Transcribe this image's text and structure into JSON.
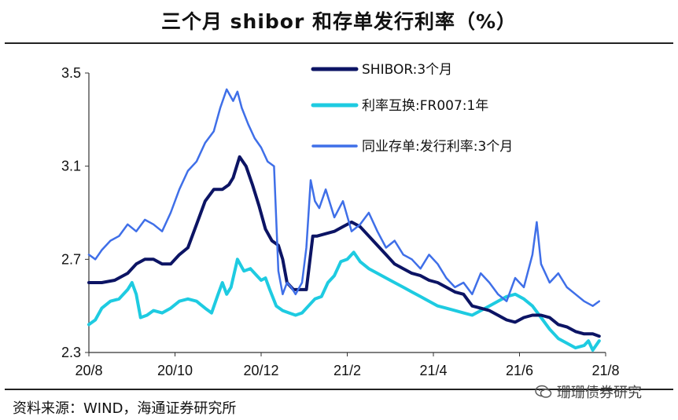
{
  "title": "三个月 shibor 和存单发行利率（%）",
  "source": "资料来源：WIND，海通证券研究所",
  "watermark": "珊珊债券研究",
  "chart_data": {
    "type": "line",
    "title": "三个月 shibor 和存单发行利率（%）",
    "xlabel": "",
    "ylabel": "",
    "ylim": [
      2.3,
      3.5
    ],
    "yticks": [
      "3.5",
      "3.1",
      "2.7",
      "2.3"
    ],
    "ytick_values": [
      3.5,
      3.1,
      2.7,
      2.3
    ],
    "xticks": [
      "20/8",
      "20/10",
      "20/12",
      "21/2",
      "21/4",
      "21/6",
      "21/8"
    ],
    "xtick_values": [
      0,
      2,
      4,
      6,
      8,
      10,
      12
    ],
    "x_range": [
      0,
      12
    ],
    "legend_position": "top-right",
    "series": [
      {
        "name": "SHIBOR:3个月",
        "color": "#0c1464",
        "width": 4,
        "x": [
          0,
          0.3,
          0.6,
          0.9,
          1.1,
          1.3,
          1.5,
          1.7,
          1.9,
          2.1,
          2.3,
          2.5,
          2.7,
          2.9,
          3.1,
          3.25,
          3.35,
          3.5,
          3.65,
          3.8,
          3.95,
          4.1,
          4.25,
          4.4,
          4.5,
          4.6,
          4.75,
          4.9,
          5.05,
          5.2,
          5.3,
          5.5,
          5.7,
          5.9,
          6.1,
          6.3,
          6.5,
          6.7,
          6.9,
          7.1,
          7.3,
          7.5,
          7.7,
          7.9,
          8.1,
          8.3,
          8.5,
          8.7,
          8.9,
          9.1,
          9.3,
          9.5,
          9.7,
          9.9,
          10.1,
          10.3,
          10.5,
          10.7,
          10.9,
          11.1,
          11.3,
          11.5,
          11.7,
          11.85
        ],
        "values": [
          2.6,
          2.6,
          2.61,
          2.64,
          2.68,
          2.7,
          2.7,
          2.68,
          2.68,
          2.72,
          2.75,
          2.85,
          2.95,
          3.0,
          3.0,
          3.02,
          3.05,
          3.14,
          3.1,
          3.02,
          2.93,
          2.83,
          2.78,
          2.76,
          2.7,
          2.6,
          2.57,
          2.57,
          2.57,
          2.8,
          2.8,
          2.81,
          2.82,
          2.84,
          2.86,
          2.84,
          2.8,
          2.76,
          2.72,
          2.68,
          2.66,
          2.64,
          2.63,
          2.61,
          2.6,
          2.58,
          2.56,
          2.55,
          2.5,
          2.49,
          2.48,
          2.46,
          2.44,
          2.43,
          2.45,
          2.46,
          2.46,
          2.45,
          2.42,
          2.41,
          2.39,
          2.38,
          2.38,
          2.37
        ]
      },
      {
        "name": "利率互换:FR007:1年",
        "color": "#1ecbe1",
        "width": 4,
        "x": [
          0,
          0.15,
          0.3,
          0.5,
          0.7,
          0.9,
          1.0,
          1.1,
          1.2,
          1.35,
          1.5,
          1.7,
          1.9,
          2.1,
          2.3,
          2.5,
          2.7,
          2.85,
          3.0,
          3.1,
          3.2,
          3.3,
          3.45,
          3.6,
          3.75,
          3.9,
          4.0,
          4.1,
          4.2,
          4.35,
          4.5,
          4.65,
          4.8,
          4.95,
          5.1,
          5.25,
          5.4,
          5.55,
          5.7,
          5.85,
          6.0,
          6.15,
          6.3,
          6.5,
          6.7,
          6.9,
          7.1,
          7.3,
          7.5,
          7.7,
          7.9,
          8.1,
          8.3,
          8.5,
          8.7,
          8.9,
          9.1,
          9.3,
          9.5,
          9.7,
          9.9,
          10.1,
          10.3,
          10.5,
          10.7,
          10.9,
          11.1,
          11.3,
          11.5,
          11.6,
          11.7,
          11.85
        ],
        "values": [
          2.42,
          2.44,
          2.49,
          2.52,
          2.53,
          2.57,
          2.6,
          2.55,
          2.45,
          2.46,
          2.48,
          2.47,
          2.49,
          2.52,
          2.53,
          2.52,
          2.49,
          2.47,
          2.55,
          2.6,
          2.55,
          2.58,
          2.7,
          2.65,
          2.66,
          2.63,
          2.61,
          2.62,
          2.57,
          2.5,
          2.48,
          2.47,
          2.46,
          2.47,
          2.5,
          2.53,
          2.54,
          2.6,
          2.63,
          2.69,
          2.7,
          2.73,
          2.69,
          2.66,
          2.64,
          2.62,
          2.6,
          2.58,
          2.56,
          2.54,
          2.52,
          2.5,
          2.49,
          2.48,
          2.47,
          2.46,
          2.48,
          2.5,
          2.52,
          2.54,
          2.55,
          2.53,
          2.5,
          2.45,
          2.4,
          2.36,
          2.34,
          2.32,
          2.33,
          2.35,
          2.31,
          2.35
        ]
      },
      {
        "name": "同业存单:发行利率:3个月",
        "color": "#3f6fe8",
        "width": 2.5,
        "x": [
          0,
          0.15,
          0.3,
          0.5,
          0.7,
          0.9,
          1.1,
          1.3,
          1.5,
          1.7,
          1.9,
          2.1,
          2.3,
          2.5,
          2.7,
          2.9,
          3.05,
          3.2,
          3.35,
          3.45,
          3.55,
          3.7,
          3.85,
          4.0,
          4.15,
          4.3,
          4.4,
          4.5,
          4.6,
          4.7,
          4.8,
          4.95,
          5.05,
          5.15,
          5.25,
          5.35,
          5.5,
          5.7,
          5.9,
          6.1,
          6.3,
          6.5,
          6.7,
          6.9,
          7.1,
          7.3,
          7.5,
          7.7,
          7.9,
          8.1,
          8.3,
          8.5,
          8.7,
          8.9,
          9.1,
          9.3,
          9.5,
          9.7,
          9.9,
          10.1,
          10.3,
          10.4,
          10.5,
          10.7,
          10.9,
          11.1,
          11.3,
          11.5,
          11.7,
          11.85
        ],
        "values": [
          2.72,
          2.7,
          2.74,
          2.78,
          2.8,
          2.85,
          2.82,
          2.87,
          2.85,
          2.82,
          2.9,
          3.0,
          3.08,
          3.12,
          3.2,
          3.25,
          3.35,
          3.43,
          3.38,
          3.42,
          3.35,
          3.28,
          3.22,
          3.18,
          3.12,
          3.1,
          2.65,
          2.55,
          2.6,
          2.58,
          2.55,
          2.6,
          2.75,
          3.04,
          2.95,
          2.92,
          3.0,
          2.88,
          2.95,
          2.82,
          2.85,
          2.9,
          2.82,
          2.75,
          2.78,
          2.72,
          2.7,
          2.66,
          2.72,
          2.68,
          2.62,
          2.58,
          2.6,
          2.55,
          2.64,
          2.6,
          2.55,
          2.52,
          2.62,
          2.58,
          2.72,
          2.86,
          2.68,
          2.6,
          2.64,
          2.58,
          2.55,
          2.52,
          2.5,
          2.52
        ]
      }
    ]
  }
}
